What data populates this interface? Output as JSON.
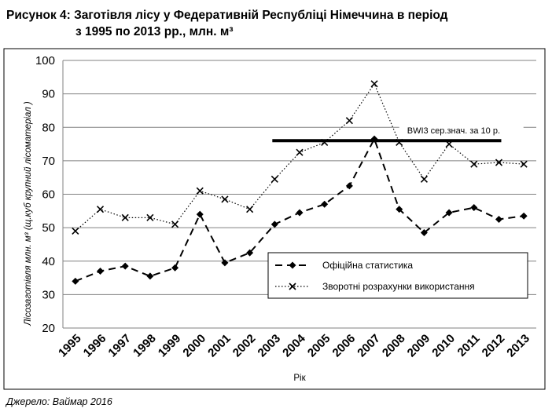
{
  "figure": {
    "title_line1": "Рисунок 4: Заготівля лісу у Федеративній Республіці Німеччина в період",
    "title_line2": "з 1995 по 2013 рр., млн. м³",
    "source": "Джерело: Ваймар 2016"
  },
  "chart_data": {
    "type": "line",
    "title": "",
    "xlabel": "Рік",
    "ylabel": "Лісозаготівля млн. м³ (щ.куб крупний лісоматеріал )",
    "ylim": [
      20,
      100
    ],
    "yticks": [
      20,
      30,
      40,
      50,
      60,
      70,
      80,
      90,
      100
    ],
    "grid": "horizontal",
    "legend_position": "bottom-right",
    "categories": [
      "1995",
      "1996",
      "1997",
      "1998",
      "1999",
      "2000",
      "2001",
      "2002",
      "2003",
      "2004",
      "2005",
      "2006",
      "2007",
      "2008",
      "2009",
      "2010",
      "2011",
      "2012",
      "2013"
    ],
    "series": [
      {
        "name": "Офіційна статистика",
        "style": "dashed",
        "marker": "diamond",
        "color": "#000000",
        "values": [
          34,
          37,
          38.5,
          35.5,
          38,
          54,
          39.5,
          42.5,
          51,
          54.5,
          57,
          62.5,
          76.5,
          55.5,
          48.5,
          54.5,
          56,
          52.5,
          53.5
        ]
      },
      {
        "name": "Зворотні розрахунки використання",
        "style": "dotted",
        "marker": "x",
        "color": "#000000",
        "values": [
          49,
          55.5,
          53,
          53,
          51,
          61,
          58.5,
          55.5,
          64.5,
          72.5,
          75.5,
          82,
          93,
          75.5,
          64.5,
          75,
          69,
          69.5,
          69
        ]
      }
    ],
    "annotation": {
      "label": "BWI3 сер.знач. за 10 р.",
      "value": 76,
      "x_start": "2003",
      "x_end": "2012"
    }
  }
}
